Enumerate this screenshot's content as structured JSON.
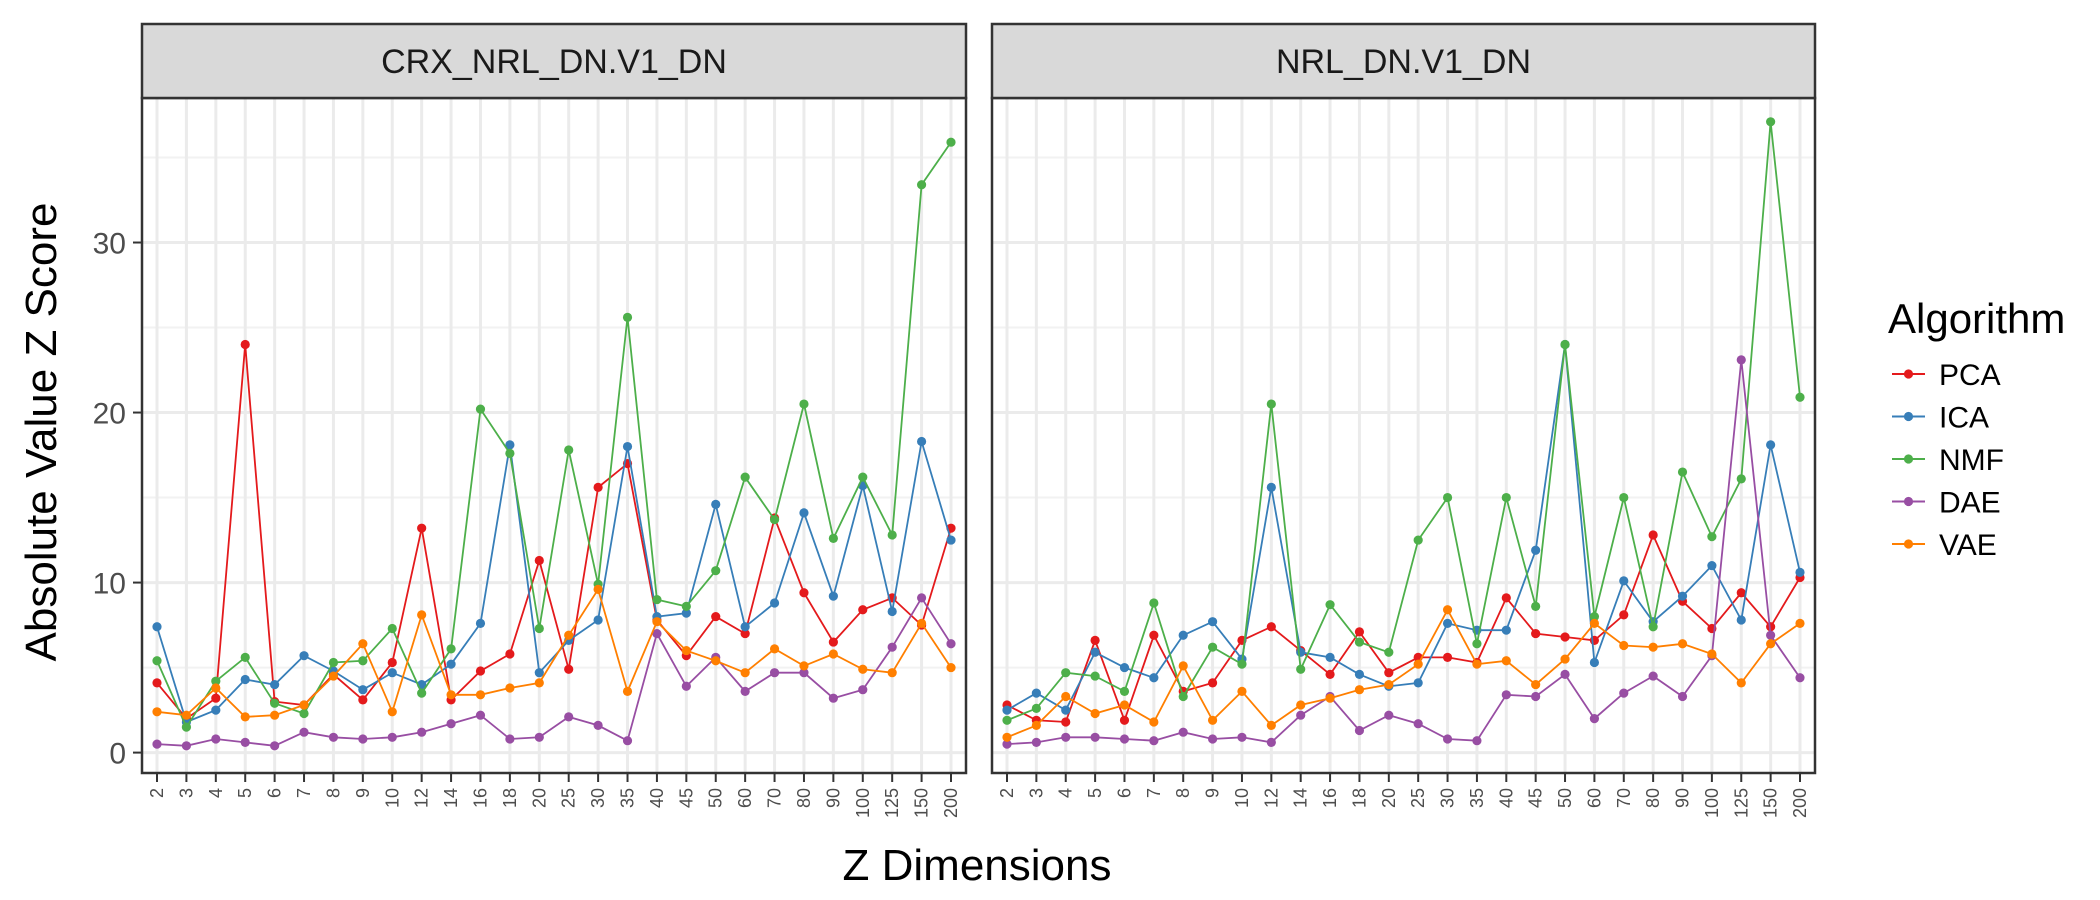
{
  "chart_data": {
    "type": "line",
    "title": "",
    "xlabel": "Z Dimensions",
    "ylabel": "Absolute Value Z Score",
    "ylim": [
      -1.2,
      38.5
    ],
    "yticks": [
      0,
      10,
      20,
      30
    ],
    "grid": true,
    "legend": {
      "title": "Algorithm",
      "position": "right"
    },
    "categories": [
      "2",
      "3",
      "4",
      "5",
      "6",
      "7",
      "8",
      "9",
      "10",
      "12",
      "14",
      "16",
      "18",
      "20",
      "25",
      "30",
      "35",
      "40",
      "45",
      "50",
      "60",
      "70",
      "80",
      "90",
      "100",
      "125",
      "150",
      "200"
    ],
    "panels": [
      {
        "name": "CRX_NRL_DN.V1_DN",
        "series": [
          {
            "name": "PCA",
            "color": "#e41a1c",
            "values": [
              4.1,
              2.0,
              3.2,
              24.0,
              3.0,
              2.8,
              4.6,
              3.1,
              5.3,
              13.2,
              3.1,
              4.8,
              5.8,
              11.3,
              4.9,
              15.6,
              17.0,
              7.8,
              5.7,
              8.0,
              7.0,
              13.8,
              9.4,
              6.5,
              8.4,
              9.1,
              7.5,
              13.2
            ]
          },
          {
            "name": "ICA",
            "color": "#377eb8",
            "values": [
              7.4,
              1.8,
              2.5,
              4.3,
              4.0,
              5.7,
              4.8,
              3.7,
              4.7,
              4.0,
              5.2,
              7.6,
              18.1,
              4.7,
              6.6,
              7.8,
              18.0,
              8.0,
              8.2,
              14.6,
              7.4,
              8.8,
              14.1,
              9.2,
              15.7,
              8.3,
              18.3,
              12.5
            ]
          },
          {
            "name": "NMF",
            "color": "#4daf4a",
            "values": [
              5.4,
              1.5,
              4.2,
              5.6,
              2.9,
              2.3,
              5.3,
              5.4,
              7.3,
              3.5,
              6.1,
              20.2,
              17.6,
              7.3,
              17.8,
              9.9,
              25.6,
              9.0,
              8.6,
              10.7,
              16.2,
              13.7,
              20.5,
              12.6,
              16.2,
              12.8,
              33.4,
              35.9
            ]
          },
          {
            "name": "DAE",
            "color": "#984ea3",
            "values": [
              0.5,
              0.4,
              0.8,
              0.6,
              0.4,
              1.2,
              0.9,
              0.8,
              0.9,
              1.2,
              1.7,
              2.2,
              0.8,
              0.9,
              2.1,
              1.6,
              0.7,
              7.0,
              3.9,
              5.6,
              3.6,
              4.7,
              4.7,
              3.2,
              3.7,
              6.2,
              9.1,
              6.4
            ]
          },
          {
            "name": "VAE",
            "color": "#ff7f00",
            "values": [
              2.4,
              2.2,
              3.8,
              2.1,
              2.2,
              2.8,
              4.5,
              6.4,
              2.4,
              8.1,
              3.4,
              3.4,
              3.8,
              4.1,
              6.9,
              9.6,
              3.6,
              7.7,
              6.0,
              5.4,
              4.7,
              6.1,
              5.1,
              5.8,
              4.9,
              4.7,
              7.6,
              5.0
            ]
          }
        ]
      },
      {
        "name": "NRL_DN.V1_DN",
        "series": [
          {
            "name": "PCA",
            "color": "#e41a1c",
            "values": [
              2.8,
              1.9,
              1.8,
              6.6,
              1.9,
              6.9,
              3.6,
              4.1,
              6.6,
              7.4,
              6.0,
              4.6,
              7.1,
              4.7,
              5.6,
              5.6,
              5.3,
              9.1,
              7.0,
              6.8,
              6.6,
              8.1,
              12.8,
              8.9,
              7.3,
              9.4,
              7.4,
              10.3
            ]
          },
          {
            "name": "ICA",
            "color": "#377eb8",
            "values": [
              2.5,
              3.5,
              2.5,
              5.9,
              5.0,
              4.4,
              6.9,
              7.7,
              5.5,
              15.6,
              5.9,
              5.6,
              4.6,
              3.9,
              4.1,
              7.6,
              7.2,
              7.2,
              11.9,
              24.0,
              5.3,
              10.1,
              7.7,
              9.2,
              11.0,
              7.8,
              18.1,
              10.6
            ]
          },
          {
            "name": "NMF",
            "color": "#4daf4a",
            "values": [
              1.9,
              2.6,
              4.7,
              4.5,
              3.6,
              8.8,
              3.3,
              6.2,
              5.2,
              20.5,
              4.9,
              8.7,
              6.5,
              5.9,
              12.5,
              15.0,
              6.4,
              15.0,
              8.6,
              24.0,
              8.0,
              15.0,
              7.4,
              16.5,
              12.7,
              16.1,
              37.1,
              20.9
            ]
          },
          {
            "name": "DAE",
            "color": "#984ea3",
            "values": [
              0.5,
              0.6,
              0.9,
              0.9,
              0.8,
              0.7,
              1.2,
              0.8,
              0.9,
              0.6,
              2.2,
              3.3,
              1.3,
              2.2,
              1.7,
              0.8,
              0.7,
              3.4,
              3.3,
              4.6,
              2.0,
              3.5,
              4.5,
              3.3,
              5.7,
              23.1,
              6.9,
              4.4
            ]
          },
          {
            "name": "VAE",
            "color": "#ff7f00",
            "values": [
              0.9,
              1.6,
              3.3,
              2.3,
              2.8,
              1.8,
              5.1,
              1.9,
              3.6,
              1.6,
              2.8,
              3.2,
              3.7,
              4.0,
              5.2,
              8.4,
              5.2,
              5.4,
              4.0,
              5.5,
              7.6,
              6.3,
              6.2,
              6.4,
              5.8,
              4.1,
              6.4,
              7.6
            ]
          }
        ]
      }
    ]
  }
}
